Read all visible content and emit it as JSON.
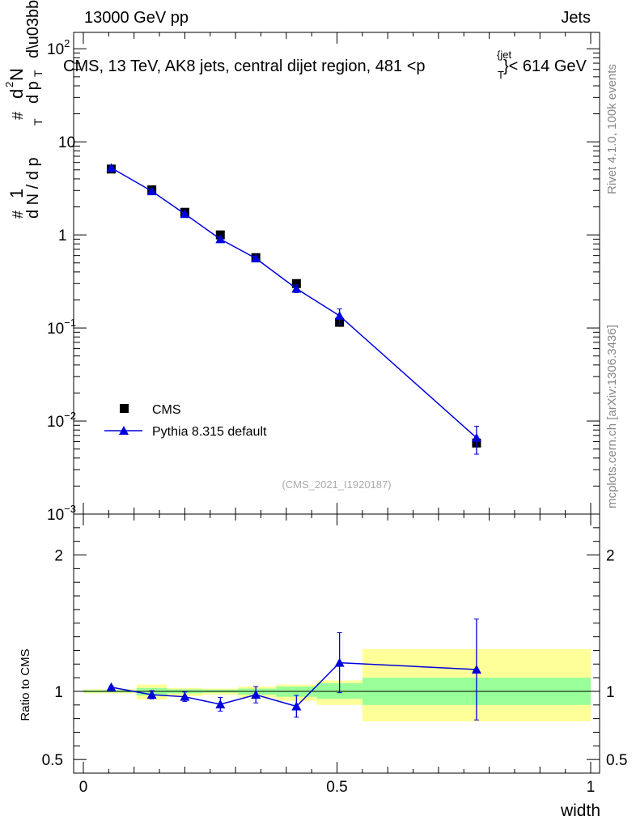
{
  "header": {
    "left": "13000 GeV pp",
    "right": "Jets"
  },
  "side_labels": {
    "rivet": "Rivet 4.1.0,  100k events",
    "mcplots": "mcplots.cern.ch [arXiv:1306.3436]"
  },
  "colors": {
    "mc": "#0000dd",
    "data": "#000000",
    "band_stat": "#99ff99",
    "band_total": "#ffff99",
    "watermark": "#aaaaaa"
  },
  "chart_data": {
    "type": "scatter",
    "title": "CMS, 13 TeV, AK8 jets, central dijet region, 481 <p",
    "title_sup": "{jet",
    "title_sub": "T",
    "title_end": "}< 614 GeV",
    "ylabel_main": "#  1  / d N / d p_T  # d²N / d p_T dλ",
    "ylabel_ratio": "Ratio to CMS",
    "xlabel": "width",
    "watermark": "(CMS_2021_I1920187)",
    "xlim": [
      0,
      1
    ],
    "ylim_main": [
      0.001,
      150
    ],
    "ylim_ratio": [
      0.4,
      2.3
    ],
    "main_y_ticks": [
      {
        "value": 0.001,
        "base": "10",
        "exp": "−3"
      },
      {
        "value": 0.01,
        "base": "10",
        "exp": "−2"
      },
      {
        "value": 0.1,
        "base": "10",
        "exp": "−1"
      },
      {
        "value": 1,
        "base": "1",
        "exp": ""
      },
      {
        "value": 10,
        "base": "10",
        "exp": ""
      },
      {
        "value": 100,
        "base": "10",
        "exp": "2"
      }
    ],
    "ratio_y_ticks": [
      {
        "value": 0.5,
        "label": "0.5"
      },
      {
        "value": 1,
        "label": "1"
      },
      {
        "value": 2,
        "label": "2"
      }
    ],
    "x_ticks": [
      {
        "value": 0,
        "label": "0"
      },
      {
        "value": 0.5,
        "label": "0.5"
      },
      {
        "value": 1,
        "label": "1"
      }
    ],
    "legend": [
      "CMS",
      "Pythia 8.315 default"
    ],
    "series": [
      {
        "name": "CMS",
        "x": [
          0.055,
          0.135,
          0.2,
          0.27,
          0.34,
          0.42,
          0.505,
          0.775
        ],
        "y": [
          5.1,
          3.05,
          1.75,
          1.0,
          0.57,
          0.3,
          0.115,
          0.0058
        ],
        "yerr": [
          0.2,
          0.12,
          0.08,
          0.05,
          0.03,
          0.02,
          0.012,
          0.0012
        ]
      },
      {
        "name": "Pythia 8.315 default",
        "x": [
          0.055,
          0.135,
          0.2,
          0.27,
          0.34,
          0.42,
          0.505,
          0.775
        ],
        "y": [
          5.25,
          2.95,
          1.68,
          0.9,
          0.56,
          0.265,
          0.135,
          0.0066
        ],
        "yerr": [
          0.05,
          0.06,
          0.05,
          0.04,
          0.03,
          0.025,
          0.025,
          0.0022
        ]
      }
    ],
    "ratio": {
      "x": [
        0.055,
        0.135,
        0.2,
        0.27,
        0.34,
        0.42,
        0.505,
        0.775
      ],
      "y": [
        1.03,
        0.975,
        0.96,
        0.905,
        0.975,
        0.89,
        1.21,
        1.16
      ],
      "yerr": [
        0.01,
        0.03,
        0.035,
        0.05,
        0.06,
        0.08,
        0.22,
        0.37
      ]
    },
    "bands": [
      {
        "x0": 0.0,
        "x1": 0.105,
        "stat": [
          0.992,
          1.008
        ],
        "total": [
          0.985,
          1.015
        ]
      },
      {
        "x0": 0.105,
        "x1": 0.165,
        "stat": [
          0.97,
          1.025
        ],
        "total": [
          0.94,
          1.05
        ]
      },
      {
        "x0": 0.165,
        "x1": 0.235,
        "stat": [
          0.985,
          1.015
        ],
        "total": [
          0.965,
          1.025
        ]
      },
      {
        "x0": 0.235,
        "x1": 0.305,
        "stat": [
          0.99,
          1.012
        ],
        "total": [
          0.975,
          1.02
        ]
      },
      {
        "x0": 0.305,
        "x1": 0.38,
        "stat": [
          0.975,
          1.02
        ],
        "total": [
          0.955,
          1.035
        ]
      },
      {
        "x0": 0.38,
        "x1": 0.46,
        "stat": [
          0.96,
          1.035
        ],
        "total": [
          0.93,
          1.05
        ]
      },
      {
        "x0": 0.46,
        "x1": 0.55,
        "stat": [
          0.945,
          1.06
        ],
        "total": [
          0.9,
          1.08
        ]
      },
      {
        "x0": 0.55,
        "x1": 1.0,
        "stat": [
          0.9,
          1.1
        ],
        "total": [
          0.78,
          1.31
        ]
      }
    ]
  }
}
